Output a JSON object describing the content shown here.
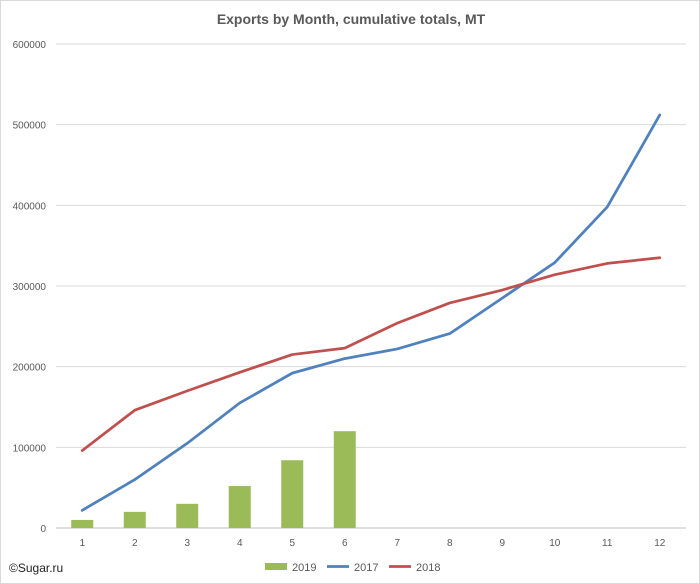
{
  "source_label": "©Sugar.ru",
  "chart_data": {
    "type": "bar+line",
    "title": "Exports by Month, cumulative totals, MT",
    "categories": [
      "1",
      "2",
      "3",
      "4",
      "5",
      "6",
      "7",
      "8",
      "9",
      "10",
      "11",
      "12"
    ],
    "ylim": [
      0,
      600000
    ],
    "yticks": [
      0,
      100000,
      200000,
      300000,
      400000,
      500000,
      600000
    ],
    "ytick_labels": [
      "0",
      "100000",
      "200000",
      "300000",
      "400000",
      "500000",
      "600000"
    ],
    "grid": true,
    "legend_position": "bottom",
    "series": [
      {
        "name": "2019",
        "kind": "bar",
        "color": "#9bbb59",
        "values": [
          10000,
          20000,
          30000,
          52000,
          84000,
          120000,
          null,
          null,
          null,
          null,
          null,
          null
        ]
      },
      {
        "name": "2017",
        "kind": "line",
        "color": "#4f81bd",
        "values": [
          22000,
          60000,
          105000,
          155000,
          192000,
          210000,
          222000,
          241000,
          285000,
          329000,
          398000,
          512000
        ]
      },
      {
        "name": "2018",
        "kind": "line",
        "color": "#c0504d",
        "values": [
          96000,
          146000,
          170000,
          193000,
          215000,
          223000,
          254000,
          279000,
          295000,
          314000,
          328000,
          335000
        ]
      }
    ]
  }
}
